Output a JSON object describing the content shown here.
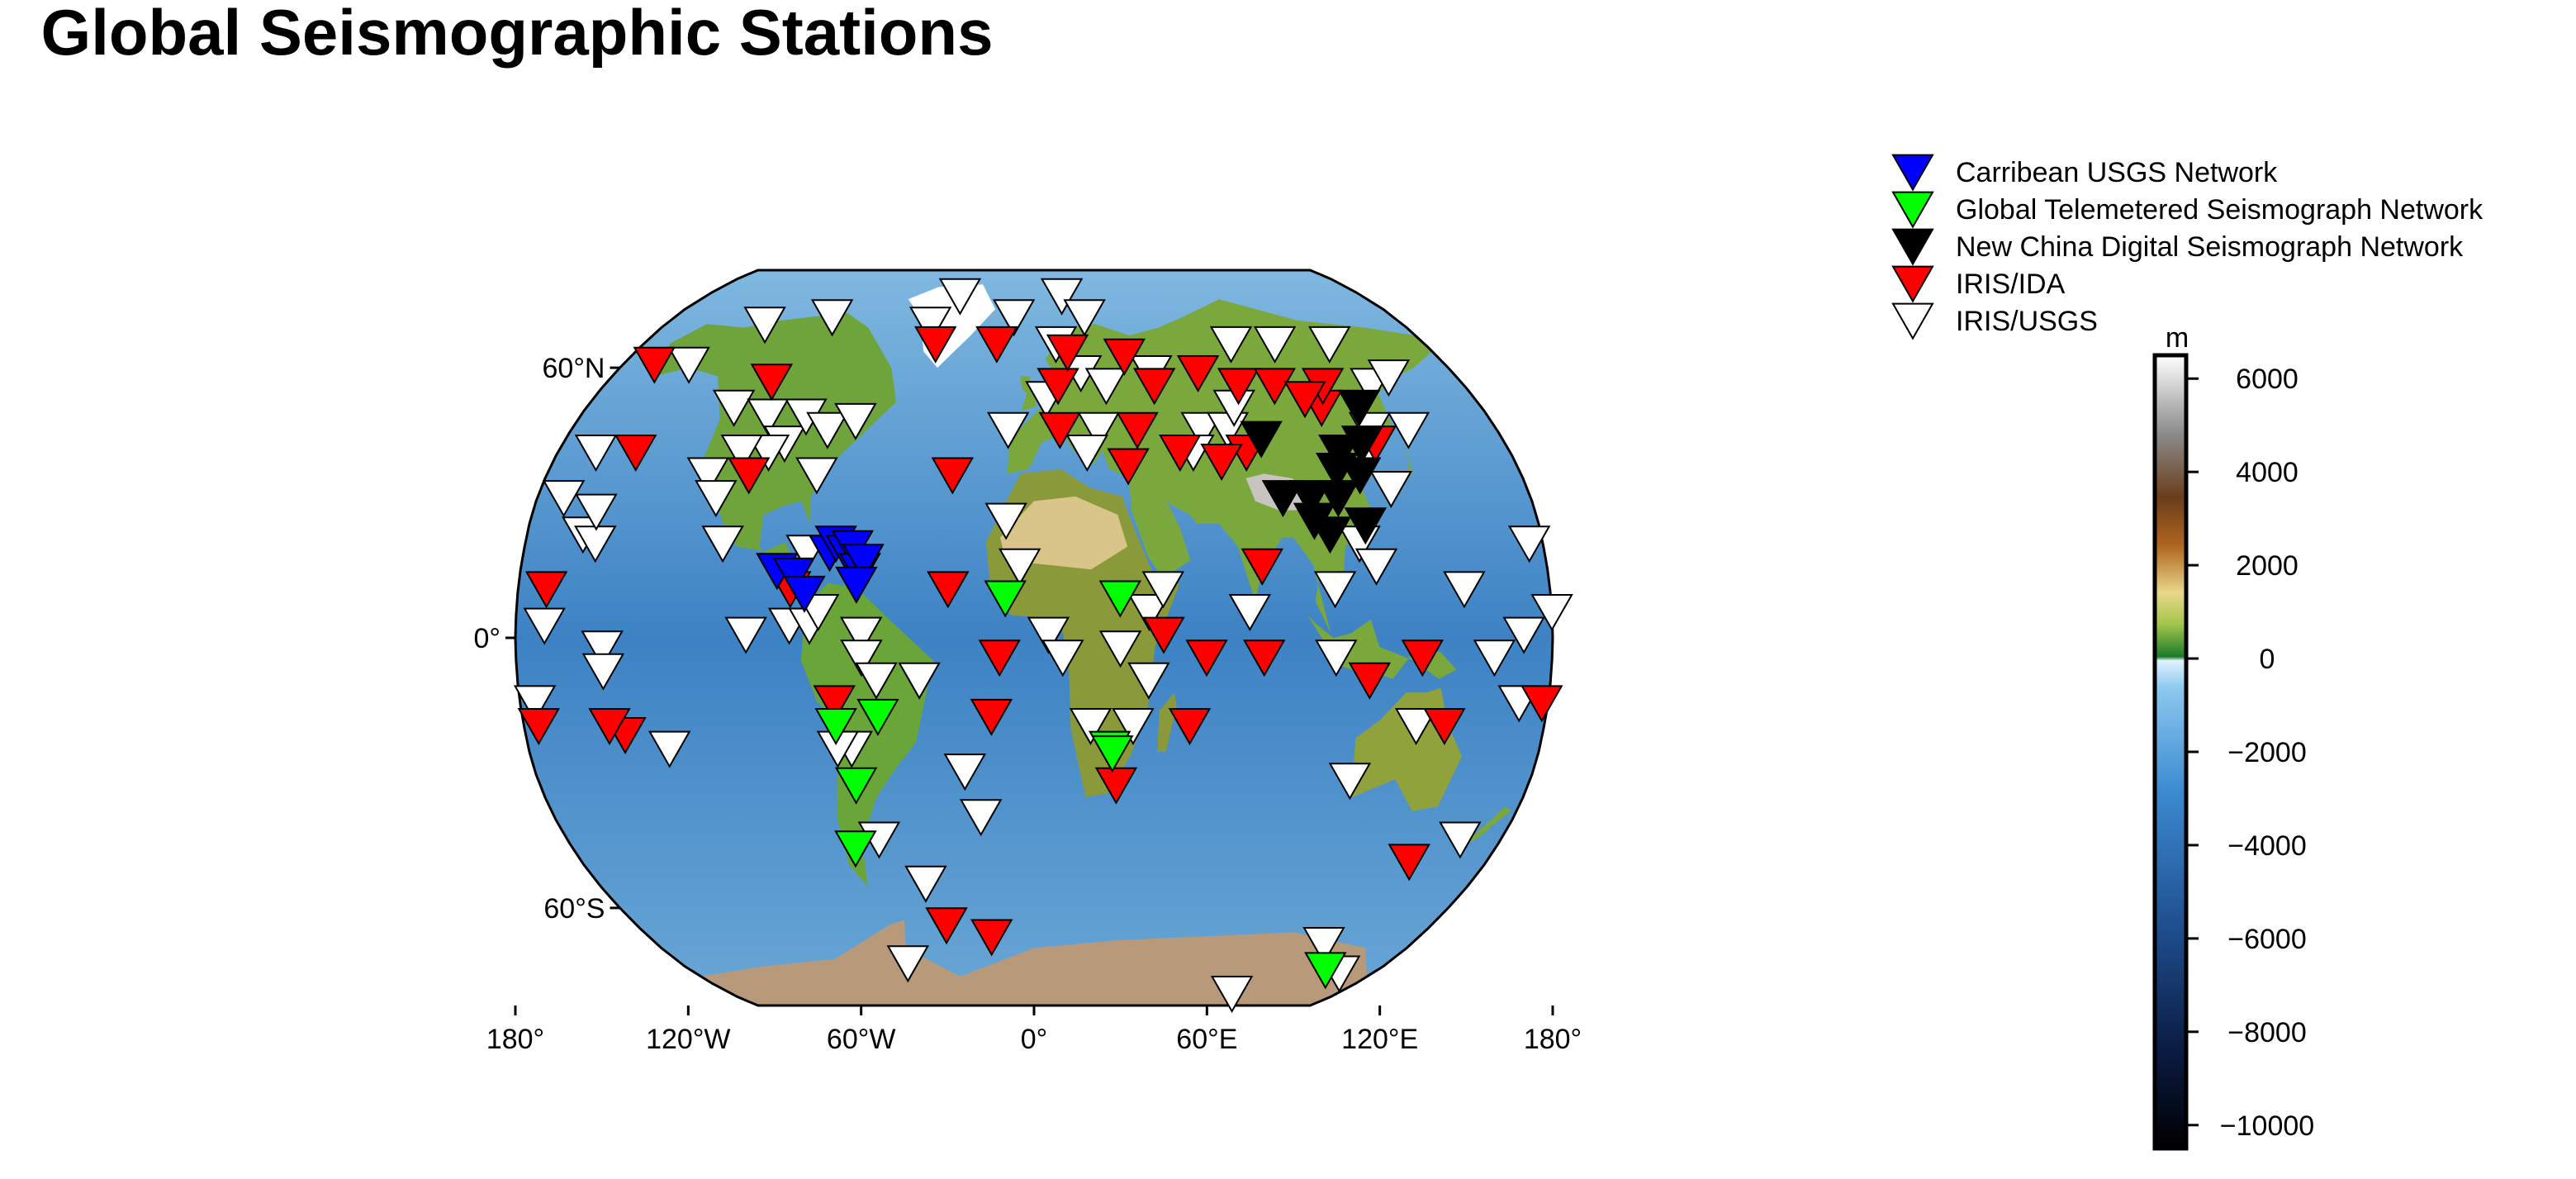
{
  "title": "Global Seismographic Stations",
  "map": {
    "projection": "Robinson",
    "region": "global",
    "center_longitude": 0,
    "frame": "ellipse-like",
    "lat_labels": [
      "60°N",
      "0°",
      "60°S"
    ],
    "lon_labels": [
      "180°",
      "120°W",
      "60°W",
      "0°",
      "60°E",
      "120°E",
      "180°"
    ]
  },
  "legend": {
    "entries": [
      {
        "label": "Carribean USGS Network",
        "color": "#0000ff",
        "key": "carribean"
      },
      {
        "label": "Global Telemetered Seismograph Network",
        "color": "#00ff00",
        "key": "gtsn"
      },
      {
        "label": "New China Digital Seismograph Network",
        "color": "#000000",
        "key": "ncdsn"
      },
      {
        "label": "IRIS/IDA",
        "color": "#ff0000",
        "key": "ida"
      },
      {
        "label": "IRIS/USGS",
        "color": "#ffffff",
        "key": "usgs"
      }
    ]
  },
  "colorbar": {
    "unit": "m",
    "ticks": [
      "6000",
      "4000",
      "2000",
      "0",
      "−2000",
      "−4000",
      "−6000",
      "−8000",
      "−10000"
    ],
    "min": -10500,
    "max": 6500
  },
  "stations": {
    "carribean": [
      [
        -90,
        14
      ],
      [
        -84,
        13
      ],
      [
        -72,
        18
      ],
      [
        -70,
        20
      ],
      [
        -66,
        18
      ],
      [
        -64,
        19
      ],
      [
        -61,
        14
      ],
      [
        -60,
        16
      ],
      [
        -62,
        11
      ],
      [
        -80,
        9
      ]
    ],
    "gtsn": [
      [
        -70,
        -20
      ],
      [
        -55,
        -18
      ],
      [
        -65,
        -33
      ],
      [
        -70,
        -47
      ],
      [
        -10,
        8
      ],
      [
        30,
        8
      ],
      [
        27,
        -25
      ],
      [
        28,
        -26
      ],
      [
        155,
        -77
      ]
    ],
    "ncdsn": [
      [
        130,
        50
      ],
      [
        115,
        40
      ],
      [
        120,
        35
      ],
      [
        110,
        30
      ],
      [
        100,
        30
      ],
      [
        112,
        36
      ],
      [
        125,
        42
      ],
      [
        100,
        25
      ],
      [
        105,
        22
      ],
      [
        90,
        30
      ],
      [
        87,
        43
      ],
      [
        118,
        24
      ]
    ],
    "ida": [
      [
        -165,
        60
      ],
      [
        -110,
        56
      ],
      [
        -150,
        40
      ],
      [
        -105,
        35
      ],
      [
        -85,
        10
      ],
      [
        -70,
        -15
      ],
      [
        -30,
        35
      ],
      [
        -30,
        10
      ],
      [
        -12,
        -5
      ],
      [
        -15,
        -18
      ],
      [
        -40,
        -65
      ],
      [
        -20,
        -68
      ],
      [
        -145,
        -22
      ],
      [
        -45,
        65
      ],
      [
        -17,
        65
      ],
      [
        10,
        55
      ],
      [
        10,
        45
      ],
      [
        15,
        63
      ],
      [
        40,
        62
      ],
      [
        50,
        55
      ],
      [
        70,
        58
      ],
      [
        85,
        55
      ],
      [
        100,
        55
      ],
      [
        115,
        50
      ],
      [
        120,
        55
      ],
      [
        130,
        42
      ],
      [
        110,
        52
      ],
      [
        80,
        40
      ],
      [
        70,
        38
      ],
      [
        55,
        40
      ],
      [
        40,
        45
      ],
      [
        35,
        37
      ],
      [
        45,
        0
      ],
      [
        60,
        -5
      ],
      [
        80,
        -5
      ],
      [
        55,
        -20
      ],
      [
        80,
        15
      ],
      [
        135,
        -5
      ],
      [
        145,
        -20
      ],
      [
        150,
        -50
      ],
      [
        178,
        -15
      ],
      [
        -170,
        10
      ],
      [
        -175,
        -20
      ],
      [
        -150,
        -20
      ],
      [
        30,
        -33
      ],
      [
        117,
        -10
      ]
    ],
    "usgs": [
      [
        -130,
        70
      ],
      [
        -100,
        72
      ],
      [
        -150,
        60
      ],
      [
        -120,
        50
      ],
      [
        -105,
        48
      ],
      [
        -95,
        42
      ],
      [
        -100,
        40
      ],
      [
        -110,
        40
      ],
      [
        -90,
        48
      ],
      [
        -80,
        45
      ],
      [
        -70,
        47
      ],
      [
        -80,
        35
      ],
      [
        -120,
        35
      ],
      [
        -115,
        30
      ],
      [
        -110,
        20
      ],
      [
        -80,
        18
      ],
      [
        -85,
        2
      ],
      [
        -60,
        0
      ],
      [
        -60,
        -5
      ],
      [
        -55,
        -10
      ],
      [
        -40,
        -10
      ],
      [
        -65,
        -25
      ],
      [
        -60,
        -45
      ],
      [
        -45,
        -55
      ],
      [
        -70,
        -25
      ],
      [
        -78,
        2
      ],
      [
        -100,
        0
      ],
      [
        -75,
        5
      ],
      [
        -160,
        22
      ],
      [
        -155,
        20
      ],
      [
        -170,
        2
      ],
      [
        -150,
        -3
      ],
      [
        -175,
        -15
      ],
      [
        -150,
        -8
      ],
      [
        -130,
        -25
      ],
      [
        -157,
        27
      ],
      [
        -170,
        30
      ],
      [
        -165,
        40
      ],
      [
        -40,
        78
      ],
      [
        -50,
        70
      ],
      [
        -10,
        72
      ],
      [
        15,
        78
      ],
      [
        25,
        72
      ],
      [
        10,
        65
      ],
      [
        20,
        58
      ],
      [
        5,
        52
      ],
      [
        30,
        55
      ],
      [
        -10,
        45
      ],
      [
        25,
        45
      ],
      [
        20,
        40
      ],
      [
        65,
        45
      ],
      [
        60,
        40
      ],
      [
        75,
        45
      ],
      [
        80,
        50
      ],
      [
        90,
        65
      ],
      [
        110,
        65
      ],
      [
        135,
        65
      ],
      [
        140,
        55
      ],
      [
        150,
        57
      ],
      [
        145,
        45
      ],
      [
        130,
        45
      ],
      [
        125,
        40
      ],
      [
        130,
        32
      ],
      [
        115,
        20
      ],
      [
        120,
        15
      ],
      [
        105,
        10
      ],
      [
        105,
        -5
      ],
      [
        150,
        10
      ],
      [
        160,
        -5
      ],
      [
        170,
        -15
      ],
      [
        135,
        -20
      ],
      [
        115,
        -32
      ],
      [
        165,
        -45
      ],
      [
        140,
        -70
      ],
      [
        -20,
        -40
      ],
      [
        -5,
        15
      ],
      [
        5,
        0
      ],
      [
        10,
        -5
      ],
      [
        35,
        -20
      ],
      [
        40,
        -10
      ],
      [
        40,
        5
      ],
      [
        45,
        10
      ],
      [
        20,
        -20
      ],
      [
        -10,
        25
      ],
      [
        50,
        58
      ],
      [
        75,
        5
      ],
      [
        30,
        -3
      ],
      [
        -25,
        -30
      ],
      [
        170,
        0
      ],
      [
        175,
        20
      ],
      [
        180,
        5
      ],
      [
        -65,
        -75
      ],
      [
        120,
        -85
      ],
      [
        165,
        -78
      ]
    ]
  }
}
